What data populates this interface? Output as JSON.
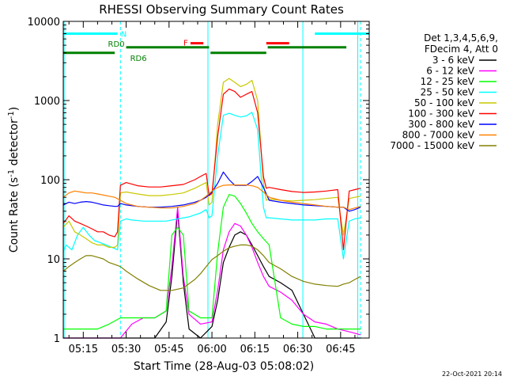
{
  "chart_data": {
    "type": "line",
    "title": "RHESSI Observing Summary Count Rates",
    "xlabel": "Start Time (28-Aug-03 05:08:02)",
    "ylabel_main": "Count Rate (s",
    "ylabel_sup1": "-1",
    "ylabel_mid": " detector",
    "ylabel_sup2": "-1",
    "ylabel_end": ")",
    "yscale": "log",
    "ylim": [
      1,
      10000
    ],
    "xlim_min": [
      308,
      415
    ],
    "xticks": [
      {
        "t": 315,
        "label": "05:15"
      },
      {
        "t": 330,
        "label": "05:30"
      },
      {
        "t": 345,
        "label": "05:45"
      },
      {
        "t": 360,
        "label": "06:00"
      },
      {
        "t": 375,
        "label": "06:15"
      },
      {
        "t": 390,
        "label": "06:30"
      },
      {
        "t": 405,
        "label": "06:45"
      }
    ],
    "yticks": [
      {
        "v": 1,
        "label": "1"
      },
      {
        "v": 10,
        "label": "10"
      },
      {
        "v": 100,
        "label": "100"
      },
      {
        "v": 1000,
        "label": "1000"
      },
      {
        "v": 10000,
        "label": "10000"
      }
    ],
    "legend_header": [
      "Det 1,3,4,5,6,9,",
      "FDecim 4, Att 0"
    ],
    "series": [
      {
        "name": "3 - 6 keV",
        "color": "#000000",
        "t": [
          308,
          312,
          316,
          320,
          324,
          328,
          332,
          336,
          340,
          344,
          346,
          348,
          350,
          352,
          356,
          360,
          362,
          364,
          366,
          368,
          370,
          372,
          374,
          376,
          378,
          380,
          384,
          388,
          392,
          396,
          400,
          404,
          408,
          412
        ],
        "v": [
          1,
          1,
          1,
          1,
          1,
          1,
          1,
          1,
          1,
          1.6,
          6,
          40,
          5,
          1.3,
          1,
          1.4,
          3,
          9,
          14,
          20,
          22,
          20,
          15,
          11,
          8,
          6,
          5,
          4,
          2,
          1,
          1,
          1,
          1,
          1
        ]
      },
      {
        "name": "6 - 12 keV",
        "color": "#ff00ff",
        "t": [
          308,
          312,
          316,
          320,
          324,
          328,
          332,
          336,
          340,
          344,
          346,
          348,
          350,
          352,
          356,
          360,
          362,
          364,
          366,
          368,
          370,
          372,
          374,
          376,
          378,
          380,
          384,
          388,
          392,
          396,
          400,
          404,
          408,
          412
        ],
        "v": [
          1,
          1,
          1,
          1,
          1,
          1,
          1.5,
          1.8,
          1.8,
          2.2,
          8,
          45,
          6,
          2,
          1.5,
          1.6,
          4,
          13,
          22,
          28,
          26,
          20,
          14,
          9,
          6,
          4.5,
          3.8,
          3,
          2,
          1.6,
          1.5,
          1.3,
          1.2,
          1.1
        ]
      },
      {
        "name": "12 - 25 keV",
        "color": "#00ff00",
        "t": [
          308,
          312,
          316,
          320,
          324,
          328,
          332,
          336,
          340,
          344,
          346,
          348,
          350,
          352,
          356,
          360,
          362,
          364,
          366,
          368,
          370,
          372,
          374,
          376,
          378,
          380,
          384,
          388,
          392,
          396,
          400,
          404,
          408,
          412
        ],
        "v": [
          1.3,
          1.3,
          1.3,
          1.3,
          1.5,
          1.8,
          1.8,
          1.8,
          1.8,
          2.2,
          20,
          25,
          20,
          2.2,
          1.8,
          1.8,
          12,
          45,
          65,
          62,
          50,
          38,
          28,
          22,
          18,
          15,
          1.8,
          1.5,
          1.4,
          1.4,
          1.3,
          1.3,
          1.3,
          1.3
        ]
      },
      {
        "name": "25 - 50 keV",
        "color": "#00ffff",
        "t": [
          308,
          309,
          311,
          313,
          315,
          317,
          319,
          321,
          323,
          325,
          327,
          328,
          330,
          332,
          336,
          340,
          344,
          348,
          352,
          356,
          358,
          359,
          360,
          362,
          364,
          366,
          368,
          370,
          372,
          374,
          376,
          378,
          379,
          380,
          384,
          388,
          392,
          396,
          400,
          404,
          406,
          408,
          410,
          412
        ],
        "v": [
          12,
          15,
          13,
          20,
          25,
          20,
          17,
          16,
          15,
          14,
          13,
          30,
          32,
          31,
          30,
          30,
          30,
          32,
          34,
          38,
          42,
          33,
          35,
          200,
          650,
          690,
          650,
          620,
          640,
          710,
          430,
          45,
          33,
          33,
          32,
          31,
          31,
          31,
          32,
          32,
          10,
          30,
          32,
          33
        ]
      },
      {
        "name": "50 - 100 keV",
        "color": "#c8c800",
        "t": [
          308,
          310,
          312,
          314,
          316,
          318,
          320,
          322,
          324,
          326,
          327,
          328,
          330,
          334,
          338,
          342,
          346,
          350,
          354,
          356,
          358,
          359,
          360,
          362,
          364,
          366,
          368,
          370,
          372,
          374,
          376,
          378,
          379,
          380,
          384,
          388,
          392,
          396,
          400,
          404,
          406,
          408,
          410,
          412
        ],
        "v": [
          25,
          30,
          22,
          20,
          18,
          16,
          15,
          15,
          14,
          14,
          15,
          68,
          70,
          66,
          63,
          63,
          65,
          68,
          78,
          85,
          92,
          48,
          52,
          500,
          1700,
          1900,
          1700,
          1500,
          1600,
          1800,
          1000,
          90,
          55,
          57,
          55,
          54,
          55,
          56,
          58,
          60,
          20,
          58,
          60,
          62
        ]
      },
      {
        "name": "100 - 300 keV",
        "color": "#ff0000",
        "t": [
          308,
          310,
          312,
          314,
          316,
          318,
          320,
          322,
          324,
          326,
          327,
          328,
          330,
          334,
          338,
          342,
          346,
          350,
          354,
          356,
          358,
          359,
          360,
          362,
          364,
          366,
          368,
          370,
          372,
          374,
          376,
          378,
          379,
          380,
          384,
          388,
          392,
          396,
          400,
          404,
          406,
          408,
          410,
          412
        ],
        "v": [
          28,
          35,
          30,
          28,
          26,
          24,
          22,
          22,
          20,
          19,
          22,
          85,
          92,
          84,
          81,
          81,
          84,
          87,
          100,
          110,
          120,
          63,
          67,
          350,
          1200,
          1400,
          1300,
          1100,
          1200,
          1300,
          700,
          110,
          78,
          80,
          75,
          71,
          69,
          70,
          72,
          75,
          13,
          72,
          75,
          78
        ]
      },
      {
        "name": "300 - 800 keV",
        "color": "#0000ff",
        "t": [
          308,
          310,
          312,
          314,
          316,
          318,
          320,
          322,
          324,
          326,
          327,
          328,
          330,
          334,
          338,
          342,
          346,
          350,
          354,
          356,
          358,
          360,
          362,
          364,
          366,
          368,
          370,
          372,
          374,
          376,
          378,
          380,
          384,
          388,
          392,
          396,
          400,
          404,
          406,
          408,
          410,
          412
        ],
        "v": [
          48,
          52,
          50,
          52,
          53,
          52,
          50,
          48,
          47,
          46,
          46,
          50,
          48,
          46,
          45,
          45,
          46,
          48,
          52,
          55,
          60,
          70,
          90,
          125,
          100,
          85,
          85,
          85,
          95,
          110,
          80,
          55,
          52,
          50,
          48,
          47,
          46,
          45,
          45,
          40,
          42,
          45
        ]
      },
      {
        "name": "800 - 7000 keV",
        "color": "#ff8000",
        "t": [
          308,
          310,
          312,
          314,
          316,
          318,
          320,
          322,
          324,
          326,
          328,
          330,
          334,
          338,
          342,
          346,
          350,
          354,
          356,
          358,
          360,
          362,
          364,
          366,
          368,
          370,
          372,
          374,
          376,
          378,
          380,
          384,
          388,
          392,
          396,
          400,
          404,
          406,
          408,
          410,
          412
        ],
        "v": [
          60,
          68,
          72,
          70,
          68,
          68,
          66,
          64,
          62,
          60,
          55,
          50,
          46,
          45,
          44,
          44,
          46,
          50,
          55,
          62,
          72,
          80,
          85,
          86,
          86,
          86,
          86,
          84,
          80,
          70,
          60,
          55,
          52,
          50,
          48,
          46,
          45,
          45,
          42,
          44,
          46
        ]
      },
      {
        "name": "7000 - 15000 keV",
        "color": "#808000",
        "t": [
          308,
          310,
          312,
          314,
          316,
          318,
          320,
          322,
          324,
          326,
          328,
          330,
          334,
          338,
          342,
          346,
          350,
          354,
          356,
          358,
          360,
          362,
          364,
          366,
          368,
          370,
          372,
          374,
          376,
          378,
          380,
          384,
          388,
          392,
          396,
          400,
          404,
          406,
          408,
          410,
          412
        ],
        "v": [
          7,
          8,
          9,
          10,
          11,
          11,
          10.5,
          10,
          9,
          8.5,
          8,
          7,
          5.6,
          4.6,
          4,
          4,
          4.3,
          5.5,
          6.5,
          8,
          9.8,
          11,
          12.5,
          13.8,
          14.5,
          15,
          15,
          14.5,
          13,
          11,
          9,
          7.5,
          6,
          5.2,
          4.8,
          4.6,
          4.5,
          4.8,
          5,
          5.5,
          6
        ]
      }
    ],
    "attenuator_N": [
      {
        "from": 308,
        "to": 327,
        "level": 7000
      },
      {
        "from": 396,
        "to": 415,
        "level": 7000
      }
    ],
    "flare_F": [
      {
        "from": 352.5,
        "to": 357,
        "level": 5300
      },
      {
        "from": 379,
        "to": 387,
        "level": 5300
      }
    ],
    "rd_markers": [
      {
        "from": 308,
        "to": 326,
        "level": 4000
      },
      {
        "from": 330,
        "to": 359,
        "level": 4700
      },
      {
        "from": 359.5,
        "to": 379,
        "level": 4000
      },
      {
        "from": 379.5,
        "to": 407,
        "level": 4700
      }
    ],
    "boundaries_dashed": [
      328,
      412
    ],
    "boundaries_solid": [
      308.3,
      358.6,
      391.8,
      411
    ],
    "labels": {
      "N": "N",
      "F": "F",
      "rd0": "RD0",
      "rd6": "RD6"
    },
    "date_stamp": "22-Oct-2021 20:14"
  }
}
